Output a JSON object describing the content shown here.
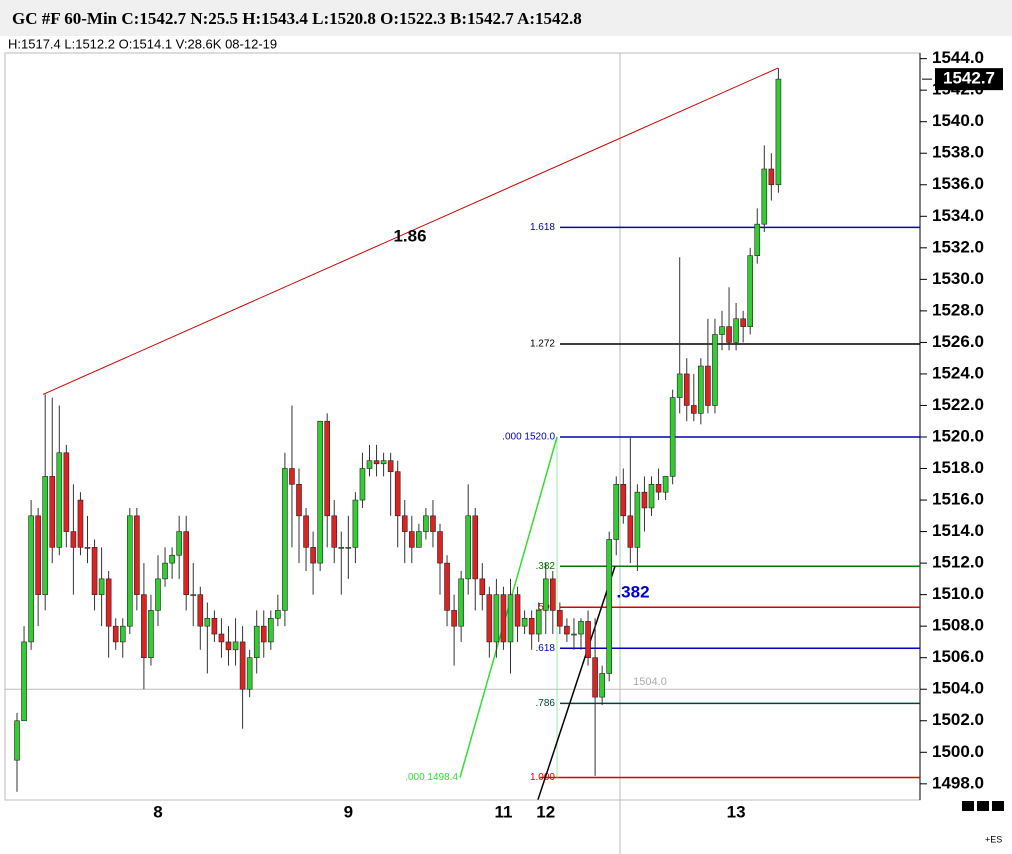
{
  "chart_data": {
    "type": "candlestick",
    "title": "GC #F 60-Min C:1542.7 N:25.5 H:1543.4 L:1520.8 O:1522.3 B:1542.7 A:1542.8",
    "subtitle": "H:1517.4 L:1512.2 O:1514.1 V:28.6K 08-12-19",
    "categories": [
      null,
      null,
      null,
      null,
      null,
      null,
      null,
      null,
      null,
      null,
      null,
      null,
      null,
      null,
      null,
      null,
      null,
      null,
      null,
      null,
      "8",
      null,
      null,
      null,
      null,
      null,
      null,
      null,
      null,
      null,
      null,
      null,
      null,
      null,
      null,
      null,
      null,
      null,
      null,
      null,
      null,
      null,
      null,
      null,
      null,
      null,
      null,
      "9",
      null,
      null,
      null,
      null,
      null,
      null,
      null,
      null,
      null,
      null,
      null,
      null,
      null,
      null,
      null,
      null,
      null,
      null,
      null,
      null,
      null,
      "11",
      null,
      null,
      null,
      null,
      null,
      "12",
      null,
      null,
      null,
      null,
      null,
      null,
      null,
      null,
      null,
      null,
      null,
      null,
      null,
      null,
      null,
      null,
      null,
      null,
      null,
      null,
      null,
      null,
      null,
      null,
      null,
      null,
      "13",
      null,
      null,
      null,
      null,
      null,
      null
    ],
    "open": [
      1499.5,
      1502,
      1507,
      1515,
      1510,
      1517.5,
      1513,
      1519,
      1514,
      1516,
      1513,
      1513,
      1510,
      1511,
      1508,
      1507,
      1508,
      1515,
      1510,
      1506,
      1509,
      1511,
      1512,
      1512.5,
      1514,
      1510,
      1510,
      1508,
      1508.5,
      1507.5,
      1507,
      1506.5,
      1507,
      1504,
      1506,
      1508,
      1507,
      1508.5,
      1509,
      1518,
      1517,
      1515,
      1513,
      1512,
      1521,
      1515,
      1513,
      1513,
      1513,
      1516,
      1518,
      1518.5,
      1518.3,
      1518.5,
      1517.8,
      1515,
      1514,
      1513,
      1514,
      1515,
      1514,
      1512,
      1509,
      1508,
      1511,
      1515,
      1511,
      1510,
      1507,
      1510,
      1507,
      1510,
      1508,
      1508.5,
      1507.5,
      1509,
      1511,
      1509,
      1508,
      1507.5,
      1507.5,
      1508.3,
      1506,
      1503.5,
      1505,
      1513.5,
      1517,
      1515,
      1513,
      1516.5,
      1515.5,
      1517,
      1516.5,
      1517.5,
      1522.5,
      1524,
      1522,
      1521.5,
      1524.5,
      1522,
      1526.5,
      1527,
      1526,
      1527.5,
      1527,
      1531.5,
      1533.5,
      1537,
      1536
    ],
    "high": [
      1502.5,
      1508,
      1516,
      1515.5,
      1522.7,
      1522.5,
      1522,
      1519.5,
      1517,
      1516.5,
      1515,
      1513.5,
      1513,
      1511.5,
      1508.5,
      1508.5,
      1515.5,
      1515.5,
      1512,
      1510,
      1512.5,
      1513,
      1513,
      1515,
      1515,
      1512,
      1510.5,
      1509.5,
      1509,
      1508.5,
      1508,
      1508.5,
      1508,
      1506.5,
      1509,
      1509,
      1509,
      1510,
      1519,
      1522,
      1518,
      1515.5,
      1514,
      1521,
      1521.5,
      1516,
      1514,
      1515,
      1516.5,
      1519,
      1519.5,
      1519.5,
      1519,
      1519,
      1518.5,
      1516,
      1515,
      1514.5,
      1515.5,
      1516,
      1514.5,
      1512.5,
      1510,
      1511.5,
      1517,
      1515.5,
      1512,
      1510.5,
      1511,
      1510.5,
      1511,
      1510.5,
      1509,
      1509,
      1509.5,
      1512,
      1511.5,
      1509.5,
      1508.5,
      1508.5,
      1508.5,
      1509,
      1508.5,
      1505.5,
      1514,
      1517.5,
      1518,
      1520,
      1517,
      1517.5,
      1517.5,
      1518,
      1517.5,
      1523,
      1531.4,
      1525,
      1524,
      1525,
      1527.5,
      1527.5,
      1528,
      1529.5,
      1528.5,
      1528,
      1532,
      1534.5,
      1538.5,
      1538,
      1543.4
    ],
    "low": [
      1497.5,
      1502,
      1506.5,
      1508,
      1509,
      1512,
      1512.5,
      1513,
      1510,
      1512.5,
      1512,
      1509,
      1508,
      1506,
      1506.5,
      1506,
      1507.5,
      1509,
      1504,
      1505.5,
      1508,
      1510.5,
      1511,
      1511,
      1509,
      1508,
      1506.5,
      1505,
      1507,
      1506,
      1505.5,
      1505.5,
      1501.5,
      1503.5,
      1505,
      1506,
      1506.5,
      1508,
      1508,
      1513,
      1512,
      1511.5,
      1510,
      1511.5,
      1513,
      1512,
      1510,
      1511,
      1512,
      1515.5,
      1517.5,
      1517.5,
      1517.5,
      1515,
      1513,
      1512,
      1512,
      1513,
      1513.5,
      1513,
      1510,
      1508,
      1505.5,
      1507,
      1510,
      1509,
      1509,
      1506,
      1506,
      1506.5,
      1505,
      1507,
      1507.5,
      1506.5,
      1507,
      1507.5,
      1507.5,
      1507.5,
      1507,
      1506.5,
      1506.5,
      1505.5,
      1498.5,
      1503,
      1504.5,
      1512.5,
      1514.5,
      1512,
      1511.5,
      1514,
      1515,
      1516,
      1516,
      1517,
      1521.5,
      1521,
      1521,
      1520.8,
      1521.5,
      1521.5,
      1525.5,
      1525.5,
      1525.5,
      1526,
      1526.5,
      1531,
      1533,
      1535,
      1535.5
    ],
    "close": [
      1502,
      1507,
      1515,
      1510,
      1517.5,
      1513,
      1519,
      1514,
      1513,
      1513,
      1513,
      1510,
      1511,
      1508,
      1507,
      1508,
      1515,
      1510,
      1506,
      1509,
      1511,
      1512,
      1512.5,
      1514,
      1510,
      1510,
      1508,
      1508.5,
      1507.5,
      1507,
      1506.5,
      1507,
      1504,
      1506,
      1508,
      1507,
      1508.5,
      1509,
      1518,
      1517,
      1515,
      1513,
      1512,
      1521,
      1515,
      1513,
      1513,
      1513,
      1516,
      1518,
      1518.5,
      1518.3,
      1518.5,
      1517.8,
      1515,
      1514,
      1513,
      1514,
      1515,
      1514,
      1512,
      1509,
      1508,
      1511,
      1515,
      1511,
      1510,
      1507,
      1510,
      1507,
      1510,
      1508,
      1508.5,
      1507.5,
      1509,
      1511,
      1509,
      1508,
      1507.5,
      1507.5,
      1508.3,
      1506,
      1503.5,
      1505,
      1513.5,
      1517,
      1515,
      1513,
      1516.5,
      1515.5,
      1517,
      1516.5,
      1517.5,
      1522.5,
      1524,
      1522,
      1521.5,
      1524.5,
      1522,
      1526.5,
      1527,
      1526,
      1527.5,
      1527,
      1531.5,
      1533.5,
      1537,
      1536,
      1542.7
    ],
    "up_color": "#33cc33",
    "down_color": "#dd2222",
    "ylim": [
      1497.1,
      1545.5
    ],
    "yticks": [
      {
        "value": 1498,
        "label": "1498.0"
      },
      {
        "value": 1500,
        "label": "1500.0"
      },
      {
        "value": 1502,
        "label": "1502.0"
      },
      {
        "value": 1504,
        "label": "1504.0"
      },
      {
        "value": 1506,
        "label": "1506.0"
      },
      {
        "value": 1508,
        "label": "1508.0"
      },
      {
        "value": 1510,
        "label": "1510.0"
      },
      {
        "value": 1512,
        "label": "1512.0"
      },
      {
        "value": 1514,
        "label": "1514.0"
      },
      {
        "value": 1516,
        "label": "1516.0"
      },
      {
        "value": 1518,
        "label": "1518.0"
      },
      {
        "value": 1520,
        "label": "1520.0"
      },
      {
        "value": 1522,
        "label": "1522.0"
      },
      {
        "value": 1524,
        "label": "1524.0"
      },
      {
        "value": 1526,
        "label": "1526.0"
      },
      {
        "value": 1528,
        "label": "1528.0"
      },
      {
        "value": 1530,
        "label": "1530.0"
      },
      {
        "value": 1532,
        "label": "1532.0"
      },
      {
        "value": 1534,
        "label": "1534.0"
      },
      {
        "value": 1536,
        "label": "1536.0"
      },
      {
        "value": 1538,
        "label": "1538.0"
      },
      {
        "value": 1540,
        "label": "1540.0"
      },
      {
        "value": 1542,
        "label": "1542.0"
      },
      {
        "value": 1544,
        "label": "1544.0"
      }
    ],
    "grid": false,
    "last_price": {
      "value": 1542.7,
      "label": "1542.7"
    },
    "fib_levels": [
      {
        "label": "1.618",
        "value": 1533.3,
        "color": "#0000bb"
      },
      {
        "label": "1.272",
        "value": 1525.9,
        "color": "#000000"
      },
      {
        "label": ".000 1520.0",
        "value": 1520.0,
        "color": "#0000bb"
      },
      {
        "label": ".382",
        "value": 1511.8,
        "color": "#007700"
      },
      {
        "label": ".500",
        "value": 1509.2,
        "color": "#dd0000"
      },
      {
        "label": ".618",
        "value": 1506.6,
        "color": "#0000bb"
      },
      {
        "label": ".786",
        "value": 1503.1,
        "color": "#004433"
      },
      {
        "label": "1.000",
        "value": 1498.4,
        "color": "#dd0000"
      }
    ],
    "fib_base": {
      "label": ".000 1498.4",
      "value": 1498.4,
      "color": "#33dd33"
    },
    "ref_level": {
      "label": "1504.0",
      "value": 1504.0
    },
    "trendlines": [
      {
        "label": "1.86",
        "from": 1522.7,
        "to": 1543.4,
        "color": "#cc0000",
        "label_color": "#000000"
      },
      {
        "from": 1498.4,
        "to": 1520.0,
        "color": "#33dd33"
      },
      {
        "label": ".382",
        "from": 1497.0,
        "to": 1511.8,
        "color": "#000000",
        "label_color": "#0000cc"
      }
    ],
    "footer": "+ES"
  }
}
